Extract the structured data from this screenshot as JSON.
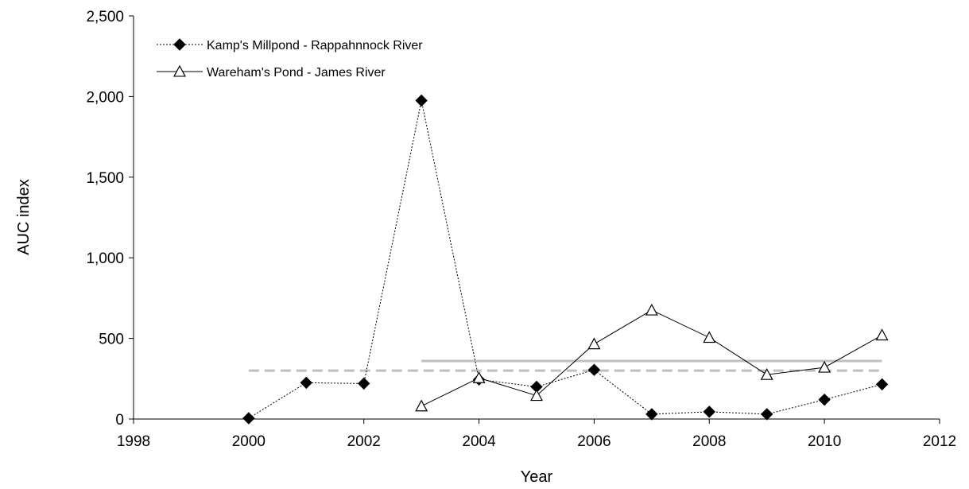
{
  "chart_data": {
    "type": "line",
    "xlabel": "Year",
    "ylabel": "AUC index",
    "xlim": [
      1998,
      2012
    ],
    "ylim": [
      0,
      2500
    ],
    "xticks": [
      1998,
      2000,
      2002,
      2004,
      2006,
      2008,
      2010,
      2012
    ],
    "xtick_labels": [
      "1998",
      "2000",
      "2002",
      "2004",
      "2006",
      "2008",
      "2010",
      "2012"
    ],
    "yticks": [
      0,
      500,
      1000,
      1500,
      2000,
      2500
    ],
    "ytick_labels": [
      "0",
      "500",
      "1,000",
      "1,500",
      "2,000",
      "2,500"
    ],
    "grid": false,
    "legend_position": "top-left",
    "series": [
      {
        "name": "Kamp's Millpond - Rappahnnock River",
        "marker": "filled-diamond",
        "line_style": "dotted",
        "color": "#000000",
        "x": [
          2000,
          2001,
          2002,
          2003,
          2004,
          2005,
          2006,
          2007,
          2008,
          2009,
          2010,
          2011
        ],
        "y": [
          5,
          225,
          220,
          1975,
          245,
          200,
          305,
          30,
          45,
          30,
          120,
          215
        ]
      },
      {
        "name": "Wareham's Pond - James River",
        "marker": "open-triangle",
        "line_style": "solid",
        "color": "#000000",
        "x": [
          2003,
          2004,
          2005,
          2006,
          2007,
          2008,
          2009,
          2010,
          2011
        ],
        "y": [
          80,
          255,
          145,
          465,
          675,
          505,
          275,
          320,
          520
        ]
      }
    ],
    "reference_lines": [
      {
        "style": "dashed",
        "color": "#bfbfbf",
        "x": [
          2000,
          2011
        ],
        "y": 300
      },
      {
        "style": "solid",
        "color": "#bfbfbf",
        "x": [
          2003,
          2011
        ],
        "y": 360
      }
    ]
  }
}
